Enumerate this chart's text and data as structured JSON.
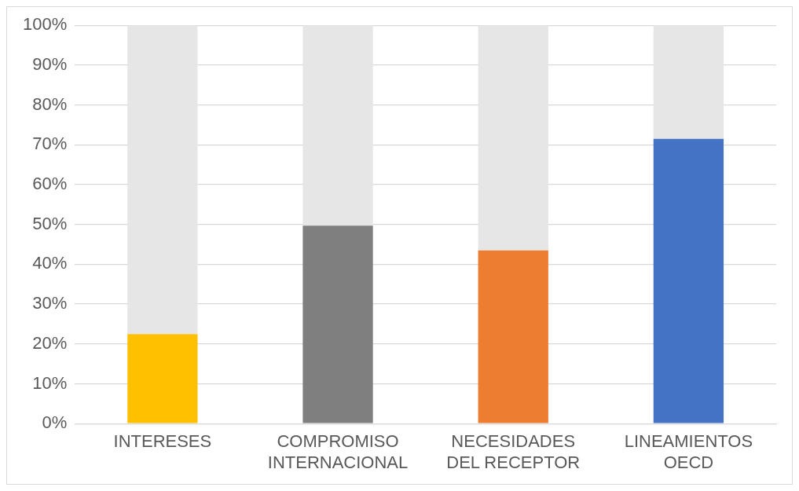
{
  "chart_data": {
    "type": "bar",
    "stacked": true,
    "categories": [
      "INTERESES",
      "COMPROMISO INTERNACIONAL",
      "NECESIDADES DEL RECEPTOR",
      "LINEAMIENTOS OECD"
    ],
    "series": [
      {
        "colors": [
          "#ffc000",
          "#7f7f7f",
          "#ed7d31",
          "#4472c4"
        ],
        "values": [
          22.5,
          49.7,
          43.5,
          71.5
        ]
      },
      {
        "color": "#e7e6e6",
        "values": [
          77.5,
          50.3,
          56.5,
          28.5
        ]
      }
    ],
    "ylim": [
      0,
      100
    ],
    "yticks": [
      {
        "value": 0,
        "label": "0%"
      },
      {
        "value": 10,
        "label": "10%"
      },
      {
        "value": 20,
        "label": "20%"
      },
      {
        "value": 30,
        "label": "30%"
      },
      {
        "value": 40,
        "label": "40%"
      },
      {
        "value": 50,
        "label": "50%"
      },
      {
        "value": 60,
        "label": "60%"
      },
      {
        "value": 70,
        "label": "70%"
      },
      {
        "value": 80,
        "label": "80%"
      },
      {
        "value": 90,
        "label": "90%"
      },
      {
        "value": 100,
        "label": "100%"
      }
    ],
    "grid": "y",
    "legend": false
  }
}
